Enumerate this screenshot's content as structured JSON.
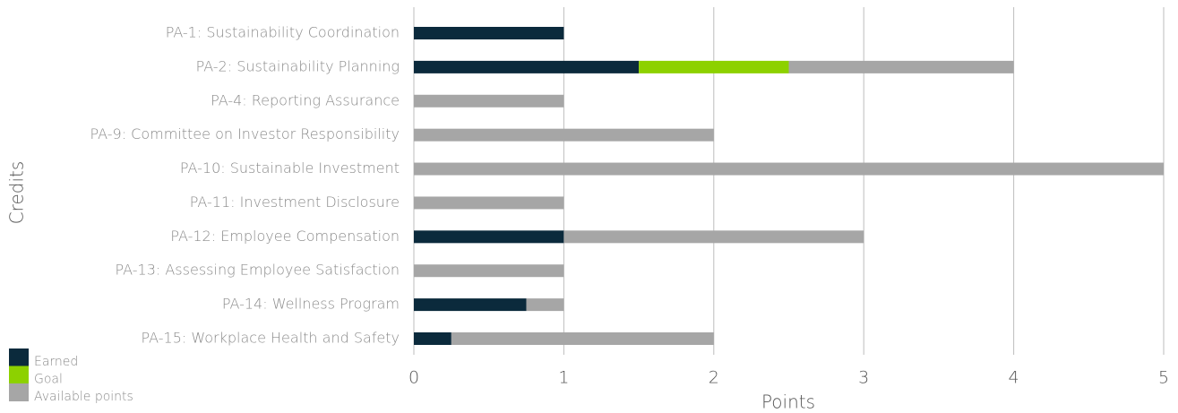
{
  "chart_data": {
    "type": "stacked-barh",
    "categories": [
      "PA-1: Sustainability Coordination",
      "PA-2: Sustainability Planning",
      "PA-4: Reporting Assurance",
      "PA-9: Committee on Investor Responsibility",
      "PA-10: Sustainable Investment",
      "PA-11: Investment Disclosure",
      "PA-12: Employee Compensation",
      "PA-13: Assessing Employee Satisfaction",
      "PA-14: Wellness Program",
      "PA-15: Workplace Health and Safety"
    ],
    "series": [
      {
        "name": "Earned",
        "color": "#0b2a3c",
        "values": [
          1,
          1.5,
          0,
          0,
          0,
          0,
          1,
          0,
          0.75,
          0.25
        ]
      },
      {
        "name": "Goal",
        "color": "#8dd100",
        "values": [
          0,
          1,
          0,
          0,
          0,
          0,
          0,
          0,
          0,
          0
        ]
      },
      {
        "name": "Available points",
        "color": "#a6a6a6",
        "values": [
          0,
          1.5,
          1,
          2,
          5,
          1,
          2,
          1,
          0.25,
          1.75
        ]
      }
    ],
    "xlabel": "Points",
    "ylabel": "Credits",
    "xlim": [
      0,
      5
    ],
    "xticks": [
      0,
      1,
      2,
      3,
      4,
      5
    ],
    "grid": true,
    "legend": "lower left"
  }
}
